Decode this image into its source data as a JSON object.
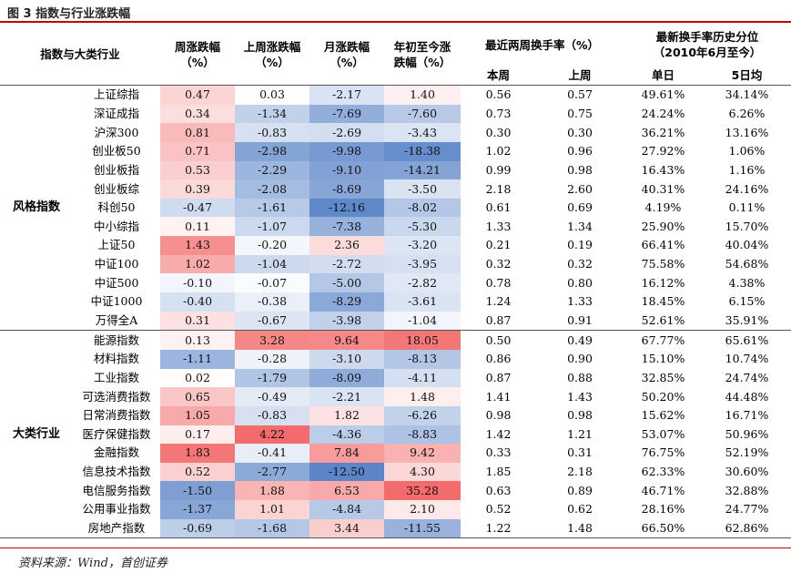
{
  "figure_title": "图 3 指数与行业涨跌幅",
  "source_text": "资料来源：Wind，首创证券",
  "headers": {
    "index_industry": "指数与大类行业",
    "weekly": "周涨跌幅",
    "last_week": "上周涨跌幅",
    "monthly": "月涨跌幅",
    "ytd_line1": "年初至今涨",
    "ytd_line2": "跌幅",
    "pct": "（%）",
    "turnover": "最近两周换手率（%）",
    "turnover_this_week": "本周",
    "turnover_last_week": "上周",
    "percentile_line1": "最新换手率历史分位",
    "percentile_line2": "（2010年6月至今）",
    "percentile_day": "单日",
    "percentile_5d": "5日均"
  },
  "colors": {
    "pos_strong": "#f36b6b",
    "neg_strong": "#5b85c8",
    "neutral": "#ffffff",
    "rule": "#c00000"
  },
  "groups": [
    {
      "name": "风格指数",
      "rows": [
        {
          "name": "上证综指",
          "weekly": "0.47",
          "last_week": "0.03",
          "monthly": "-2.17",
          "ytd": "1.40",
          "t_this": "0.56",
          "t_last": "0.57",
          "p_day": "49.61%",
          "p_5d": "34.14%"
        },
        {
          "name": "深证成指",
          "weekly": "0.34",
          "last_week": "-1.34",
          "monthly": "-7.69",
          "ytd": "-7.60",
          "t_this": "0.73",
          "t_last": "0.75",
          "p_day": "24.24%",
          "p_5d": "6.26%"
        },
        {
          "name": "沪深300",
          "weekly": "0.81",
          "last_week": "-0.83",
          "monthly": "-2.69",
          "ytd": "-3.43",
          "t_this": "0.30",
          "t_last": "0.30",
          "p_day": "36.21%",
          "p_5d": "13.16%"
        },
        {
          "name": "创业板50",
          "weekly": "0.71",
          "last_week": "-2.98",
          "monthly": "-9.98",
          "ytd": "-18.38",
          "t_this": "1.02",
          "t_last": "0.96",
          "p_day": "27.92%",
          "p_5d": "1.06%"
        },
        {
          "name": "创业板指",
          "weekly": "0.53",
          "last_week": "-2.29",
          "monthly": "-9.10",
          "ytd": "-14.21",
          "t_this": "0.99",
          "t_last": "0.98",
          "p_day": "16.43%",
          "p_5d": "1.16%"
        },
        {
          "name": "创业板综",
          "weekly": "0.39",
          "last_week": "-2.08",
          "monthly": "-8.69",
          "ytd": "-3.50",
          "t_this": "2.18",
          "t_last": "2.60",
          "p_day": "40.31%",
          "p_5d": "24.16%"
        },
        {
          "name": "科创50",
          "weekly": "-0.47",
          "last_week": "-1.61",
          "monthly": "-12.16",
          "ytd": "-8.02",
          "t_this": "0.61",
          "t_last": "0.69",
          "p_day": "4.19%",
          "p_5d": "0.11%"
        },
        {
          "name": "中小综指",
          "weekly": "0.11",
          "last_week": "-1.07",
          "monthly": "-7.38",
          "ytd": "-5.30",
          "t_this": "1.33",
          "t_last": "1.34",
          "p_day": "25.90%",
          "p_5d": "15.70%"
        },
        {
          "name": "上证50",
          "weekly": "1.43",
          "last_week": "-0.20",
          "monthly": "2.36",
          "ytd": "-3.20",
          "t_this": "0.21",
          "t_last": "0.19",
          "p_day": "66.41%",
          "p_5d": "40.04%"
        },
        {
          "name": "中证100",
          "weekly": "1.02",
          "last_week": "-1.04",
          "monthly": "-2.72",
          "ytd": "-3.95",
          "t_this": "0.32",
          "t_last": "0.32",
          "p_day": "75.58%",
          "p_5d": "54.68%"
        },
        {
          "name": "中证500",
          "weekly": "-0.10",
          "last_week": "-0.07",
          "monthly": "-5.00",
          "ytd": "-2.82",
          "t_this": "0.78",
          "t_last": "0.80",
          "p_day": "16.12%",
          "p_5d": "4.38%"
        },
        {
          "name": "中证1000",
          "weekly": "-0.40",
          "last_week": "-0.38",
          "monthly": "-8.29",
          "ytd": "-3.61",
          "t_this": "1.24",
          "t_last": "1.33",
          "p_day": "18.45%",
          "p_5d": "6.15%"
        },
        {
          "name": "万得全A",
          "weekly": "0.31",
          "last_week": "-0.67",
          "monthly": "-3.98",
          "ytd": "-1.04",
          "t_this": "0.87",
          "t_last": "0.91",
          "p_day": "52.61%",
          "p_5d": "35.91%"
        }
      ]
    },
    {
      "name": "大类行业",
      "rows": [
        {
          "name": "能源指数",
          "weekly": "0.13",
          "last_week": "3.28",
          "monthly": "9.64",
          "ytd": "18.05",
          "t_this": "0.50",
          "t_last": "0.49",
          "p_day": "67.77%",
          "p_5d": "65.61%"
        },
        {
          "name": "材料指数",
          "weekly": "-1.11",
          "last_week": "-0.28",
          "monthly": "-3.10",
          "ytd": "-8.13",
          "t_this": "0.86",
          "t_last": "0.90",
          "p_day": "15.10%",
          "p_5d": "10.74%"
        },
        {
          "name": "工业指数",
          "weekly": "0.02",
          "last_week": "-1.79",
          "monthly": "-8.09",
          "ytd": "-4.11",
          "t_this": "0.87",
          "t_last": "0.88",
          "p_day": "32.85%",
          "p_5d": "24.74%"
        },
        {
          "name": "可选消费指数",
          "weekly": "0.65",
          "last_week": "-0.49",
          "monthly": "-2.21",
          "ytd": "1.48",
          "t_this": "1.41",
          "t_last": "1.43",
          "p_day": "50.20%",
          "p_5d": "44.48%"
        },
        {
          "name": "日常消费指数",
          "weekly": "1.05",
          "last_week": "-0.83",
          "monthly": "1.82",
          "ytd": "-6.26",
          "t_this": "0.98",
          "t_last": "0.98",
          "p_day": "15.62%",
          "p_5d": "16.71%"
        },
        {
          "name": "医疗保健指数",
          "weekly": "0.17",
          "last_week": "4.22",
          "monthly": "-4.36",
          "ytd": "-8.83",
          "t_this": "1.42",
          "t_last": "1.21",
          "p_day": "53.07%",
          "p_5d": "50.96%"
        },
        {
          "name": "金融指数",
          "weekly": "1.83",
          "last_week": "-0.41",
          "monthly": "7.84",
          "ytd": "9.42",
          "t_this": "0.33",
          "t_last": "0.31",
          "p_day": "76.75%",
          "p_5d": "52.19%"
        },
        {
          "name": "信息技术指数",
          "weekly": "0.52",
          "last_week": "-2.77",
          "monthly": "-12.50",
          "ytd": "4.30",
          "t_this": "1.85",
          "t_last": "2.18",
          "p_day": "62.33%",
          "p_5d": "30.60%"
        },
        {
          "name": "电信服务指数",
          "weekly": "-1.50",
          "last_week": "1.88",
          "monthly": "6.53",
          "ytd": "35.28",
          "t_this": "0.63",
          "t_last": "0.89",
          "p_day": "46.71%",
          "p_5d": "32.88%"
        },
        {
          "name": "公用事业指数",
          "weekly": "-1.37",
          "last_week": "1.01",
          "monthly": "-4.84",
          "ytd": "2.10",
          "t_this": "0.52",
          "t_last": "0.62",
          "p_day": "28.16%",
          "p_5d": "24.77%"
        },
        {
          "name": "房地产指数",
          "weekly": "-0.69",
          "last_week": "-1.68",
          "monthly": "3.44",
          "ytd": "-11.55",
          "t_this": "1.22",
          "t_last": "1.48",
          "p_day": "66.50%",
          "p_5d": "62.86%"
        }
      ]
    }
  ]
}
